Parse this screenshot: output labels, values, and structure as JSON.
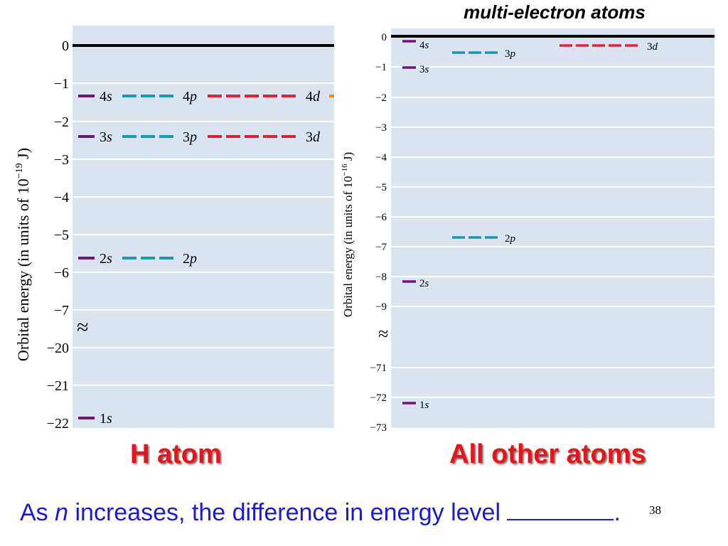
{
  "header": {
    "title": "multi-electron atoms"
  },
  "left_panel": {
    "y_axis_label": "Orbital energy (in units of 10",
    "y_axis_exp": "−19",
    "y_axis_suffix": " J)",
    "ticks": [
      "0",
      "−1",
      "−2",
      "−3",
      "−4",
      "−5",
      "−6",
      "−7",
      "−20",
      "−21",
      "−22"
    ],
    "break_symbol": "≈",
    "caption": "H atom"
  },
  "right_panel": {
    "y_axis_label": "Orbital energy (in units of 10",
    "y_axis_exp": "−16",
    "y_axis_suffix": " J)",
    "ticks": [
      "0",
      "−1",
      "−2",
      "−3",
      "−4",
      "−5",
      "−6",
      "−7",
      "−8",
      "−9",
      "−71",
      "−72",
      "−73"
    ],
    "break_symbol": "≈",
    "caption": "All other atoms"
  },
  "chart_data": [
    {
      "type": "energy-level diagram",
      "ylabel": "Orbital energy (in units of 10−19 J)",
      "y_axis_break": [
        -7,
        -20
      ],
      "ylim": [
        -22,
        0
      ],
      "levels": [
        {
          "n": 4,
          "orbitals": [
            "4s",
            "4p",
            "4d"
          ],
          "energy": -1.36
        },
        {
          "n": 3,
          "orbitals": [
            "3s",
            "3p",
            "3d"
          ],
          "energy": -2.42
        },
        {
          "n": 2,
          "orbitals": [
            "2s",
            "2p"
          ],
          "energy": -5.45
        },
        {
          "n": 1,
          "orbitals": [
            "1s"
          ],
          "energy": -21.8
        }
      ]
    },
    {
      "type": "energy-level diagram",
      "ylabel": "Orbital energy (in units of 10−16 J)",
      "y_axis_break": [
        -9,
        -71
      ],
      "ylim": [
        -73,
        0
      ],
      "levels": [
        {
          "orbital": "4s",
          "energy": -0.15
        },
        {
          "orbital": "3s",
          "energy": -1.0
        },
        {
          "orbital": "3p",
          "energy": -0.55
        },
        {
          "orbital": "3d",
          "energy": -0.3
        },
        {
          "orbital": "2p",
          "energy": -6.7
        },
        {
          "orbital": "2s",
          "energy": -8.15
        },
        {
          "orbital": "1s",
          "energy": -72.2
        }
      ]
    }
  ],
  "colors": {
    "s": "#6a1a6e",
    "p": "#1a9aa8",
    "d": "#e0203a",
    "background": "#d9e4f0",
    "caption": "#e8141b",
    "footer": "#1a1ad6"
  },
  "footer": {
    "text_before": "As ",
    "variable": "n",
    "text_after": " increases, the difference in energy level ",
    "period": ".",
    "slide_number": "38"
  }
}
